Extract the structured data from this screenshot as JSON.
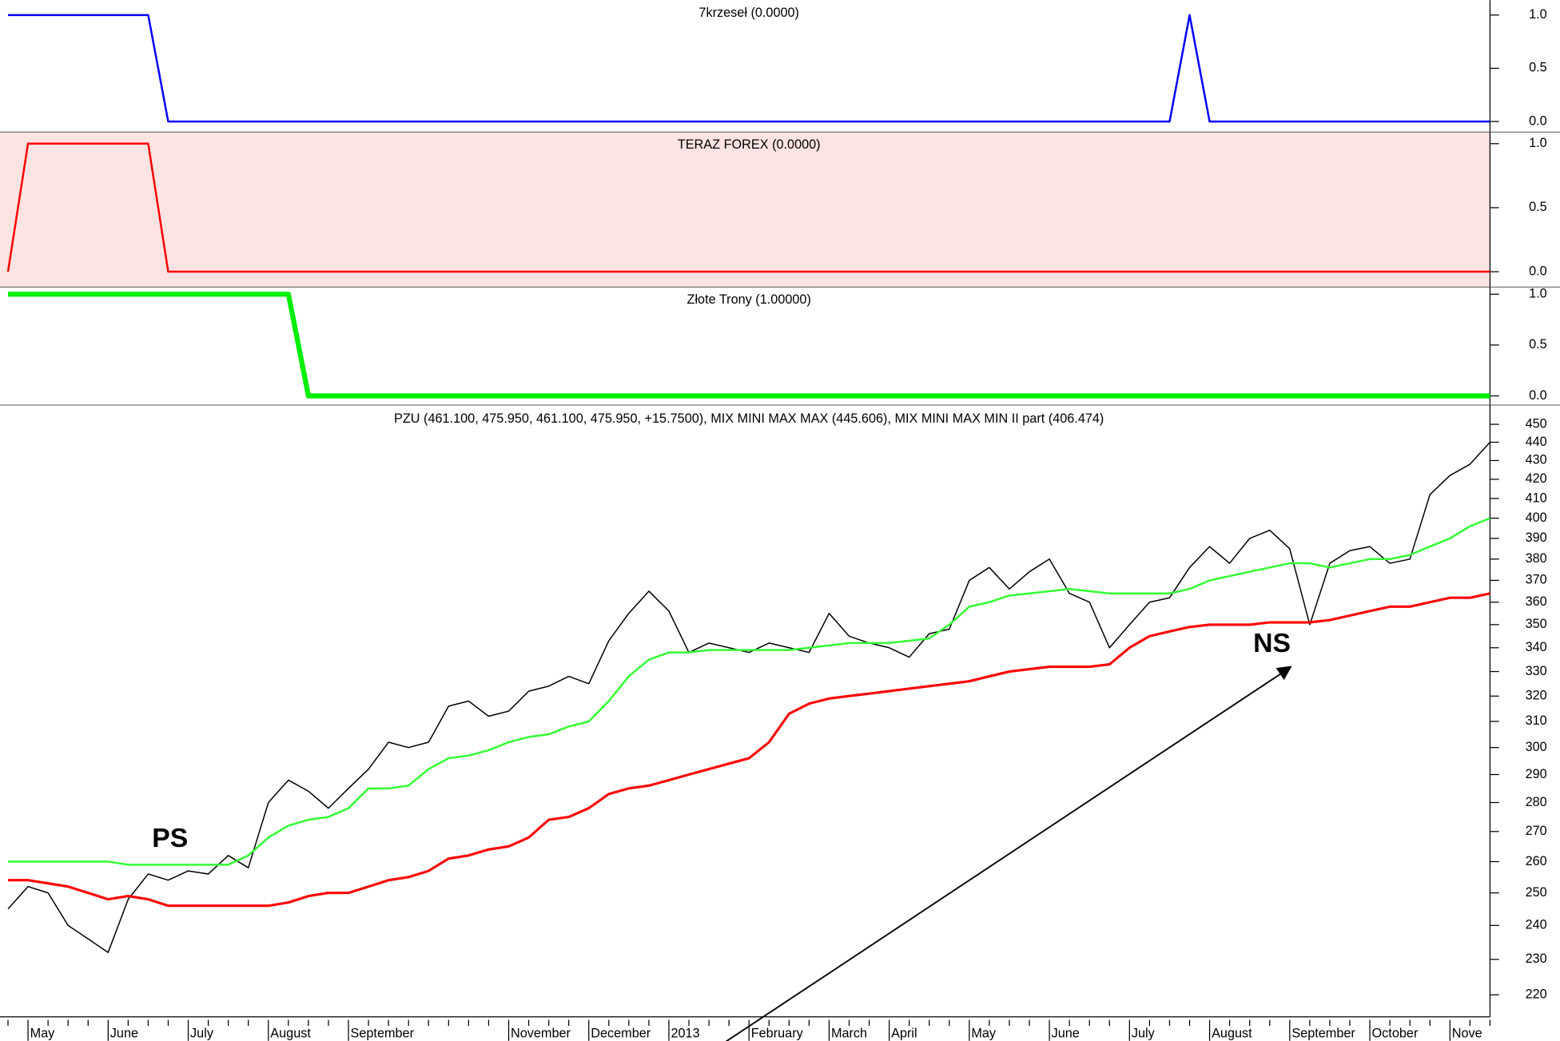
{
  "chart_data": [
    {
      "type": "line",
      "title": "7krzeseł (0.0000)",
      "ylim": [
        -0.1,
        1.14
      ],
      "yticks": [
        {
          "value": 0,
          "label": "0.0"
        },
        {
          "value": 0.5,
          "label": "0.5"
        },
        {
          "value": 1,
          "label": "1.0"
        }
      ],
      "series": [
        {
          "color": "#0000ff",
          "values": [
            1,
            1,
            1,
            1,
            1,
            1,
            1,
            1,
            0,
            0,
            0,
            0,
            0,
            0,
            0,
            0,
            0,
            0,
            0,
            0,
            0,
            0,
            0,
            0,
            0,
            0,
            0,
            0,
            0,
            0,
            0,
            0,
            0,
            0,
            0,
            0,
            0,
            0,
            0,
            0,
            0,
            0,
            0,
            0,
            0,
            0,
            0,
            0,
            0,
            0,
            0,
            0,
            0,
            0,
            0,
            0,
            0,
            0,
            0,
            1,
            0,
            0,
            0,
            0,
            0,
            0,
            0,
            0,
            0,
            0,
            0,
            0,
            0,
            0,
            0
          ]
        }
      ]
    },
    {
      "type": "line",
      "title": "TERAZ FOREX (0.0000)",
      "ylim": [
        -0.12,
        1.09
      ],
      "background": "#fde3e1",
      "yticks": [
        {
          "value": 0,
          "label": "0.0"
        },
        {
          "value": 0.5,
          "label": "0.5"
        },
        {
          "value": 1,
          "label": "1.0"
        }
      ],
      "series": [
        {
          "color": "#ff0000",
          "values": [
            0,
            1,
            1,
            1,
            1,
            1,
            1,
            1,
            0,
            0,
            0,
            0,
            0,
            0,
            0,
            0,
            0,
            0,
            0,
            0,
            0,
            0,
            0,
            0,
            0,
            0,
            0,
            0,
            0,
            0,
            0,
            0,
            0,
            0,
            0,
            0,
            0,
            0,
            0,
            0,
            0,
            0,
            0,
            0,
            0,
            0,
            0,
            0,
            0,
            0,
            0,
            0,
            0,
            0,
            0,
            0,
            0,
            0,
            0,
            0,
            0,
            0,
            0,
            0,
            0,
            0,
            0,
            0,
            0,
            0,
            0,
            0,
            0,
            0,
            0
          ]
        }
      ]
    },
    {
      "type": "line",
      "title": "Złote Trony (1.00000)",
      "ylim": [
        -0.09,
        1.07
      ],
      "yticks": [
        {
          "value": 0,
          "label": "0.0"
        },
        {
          "value": 0.5,
          "label": "0.5"
        },
        {
          "value": 1,
          "label": "1.0"
        }
      ],
      "series": [
        {
          "color": "#00ee00",
          "width": 5,
          "values": [
            1,
            1,
            1,
            1,
            1,
            1,
            1,
            1,
            1,
            1,
            1,
            1,
            1,
            1,
            1,
            0,
            0,
            0,
            0,
            0,
            0,
            0,
            0,
            0,
            0,
            0,
            0,
            0,
            0,
            0,
            0,
            0,
            0,
            0,
            0,
            0,
            0,
            0,
            0,
            0,
            0,
            0,
            0,
            0,
            0,
            0,
            0,
            0,
            0,
            0,
            0,
            0,
            0,
            0,
            0,
            0,
            0,
            0,
            0,
            0,
            0,
            0,
            0,
            0,
            0,
            0,
            0,
            0,
            0,
            0,
            0,
            0,
            0,
            0,
            0
          ]
        }
      ]
    },
    {
      "type": "line",
      "title": "PZU (461.100, 475.950, 461.100, 475.950, +15.7500), MIX MINI MAX MAX (445.606), MIX MINI MAX MIN II part (406.474)",
      "logscale": true,
      "ylim": [
        214,
        461
      ],
      "yticks": [
        220,
        230,
        240,
        250,
        260,
        270,
        280,
        290,
        300,
        310,
        320,
        330,
        340,
        350,
        360,
        370,
        380,
        390,
        400,
        410,
        420,
        430,
        440,
        450
      ],
      "categories": [
        null,
        "May",
        null,
        null,
        null,
        "June",
        null,
        null,
        null,
        "July",
        null,
        null,
        null,
        "August",
        null,
        null,
        null,
        "September",
        null,
        null,
        null,
        null,
        null,
        null,
        null,
        "November",
        null,
        null,
        null,
        "December",
        null,
        null,
        null,
        "2013",
        null,
        null,
        null,
        "February",
        null,
        null,
        null,
        "March",
        null,
        null,
        "April",
        null,
        null,
        null,
        "May",
        null,
        null,
        null,
        "June",
        null,
        null,
        null,
        "July",
        null,
        null,
        null,
        "August",
        null,
        null,
        null,
        "September",
        null,
        null,
        null,
        "October",
        null,
        null,
        null,
        "Nove",
        null,
        null
      ],
      "annotations": [
        "PS",
        "NS"
      ],
      "series": [
        {
          "color": "#000000",
          "width": 1.2,
          "values": [
            245,
            252,
            250,
            240,
            236,
            232,
            248,
            256,
            254,
            257,
            256,
            262,
            258,
            280,
            288,
            284,
            278,
            285,
            292,
            302,
            300,
            302,
            316,
            318,
            312,
            314,
            322,
            324,
            328,
            325,
            343,
            355,
            365,
            356,
            338,
            342,
            340,
            338,
            342,
            340,
            338,
            355,
            345,
            342,
            340,
            336,
            346,
            348,
            370,
            376,
            366,
            374,
            380,
            364,
            360,
            340,
            350,
            360,
            362,
            376,
            386,
            378,
            390,
            394,
            385,
            350,
            378,
            384,
            386,
            378,
            380,
            412,
            422,
            428,
            440
          ]
        },
        {
          "color": "#33ff33",
          "width": 2,
          "values": [
            260,
            260,
            260,
            260,
            260,
            260,
            259,
            259,
            259,
            259,
            259,
            259,
            262,
            268,
            272,
            274,
            275,
            278,
            285,
            285,
            286,
            292,
            296,
            297,
            299,
            302,
            304,
            305,
            308,
            310,
            318,
            328,
            335,
            338,
            338,
            339,
            339,
            339,
            339,
            339,
            340,
            341,
            342,
            342,
            342,
            343,
            344,
            350,
            358,
            360,
            363,
            364,
            365,
            366,
            365,
            364,
            364,
            364,
            364,
            366,
            370,
            372,
            374,
            376,
            378,
            378,
            376,
            378,
            380,
            380,
            382,
            386,
            390,
            396,
            400
          ]
        },
        {
          "color": "#ff0000",
          "width": 2.5,
          "values": [
            254,
            254,
            253,
            252,
            250,
            248,
            249,
            248,
            246,
            246,
            246,
            246,
            246,
            246,
            247,
            249,
            250,
            250,
            252,
            254,
            255,
            257,
            261,
            262,
            264,
            265,
            268,
            274,
            275,
            278,
            283,
            285,
            286,
            288,
            290,
            292,
            294,
            296,
            302,
            313,
            317,
            319,
            320,
            321,
            322,
            323,
            324,
            325,
            326,
            328,
            330,
            331,
            332,
            332,
            332,
            333,
            340,
            345,
            347,
            349,
            350,
            350,
            350,
            351,
            351,
            351,
            352,
            354,
            356,
            358,
            358,
            360,
            362,
            362,
            364
          ]
        }
      ]
    }
  ]
}
